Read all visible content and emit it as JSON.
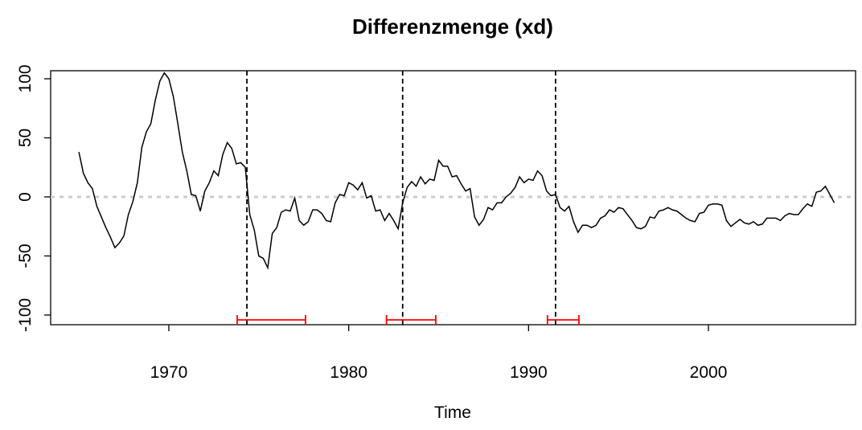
{
  "chart_data": {
    "type": "line",
    "title": "Differenzmenge (xd)",
    "x_label": "Time",
    "x": [
      1965,
      1965.25,
      1965.5,
      1965.75,
      1966,
      1966.25,
      1966.5,
      1966.75,
      1967,
      1967.25,
      1967.5,
      1967.75,
      1968,
      1968.25,
      1968.5,
      1968.75,
      1969,
      1969.25,
      1969.5,
      1969.75,
      1970,
      1970.25,
      1970.5,
      1970.75,
      1971,
      1971.25,
      1971.5,
      1971.75,
      1972,
      1972.25,
      1972.5,
      1972.75,
      1973,
      1973.25,
      1973.5,
      1973.75,
      1974,
      1974.25,
      1974.5,
      1974.75,
      1975,
      1975.25,
      1975.5,
      1975.75,
      1976,
      1976.25,
      1976.5,
      1976.75,
      1977,
      1977.25,
      1977.5,
      1977.75,
      1978,
      1978.25,
      1978.5,
      1978.75,
      1979,
      1979.25,
      1979.5,
      1979.75,
      1980,
      1980.25,
      1980.5,
      1980.75,
      1981,
      1981.25,
      1981.5,
      1981.75,
      1982,
      1982.25,
      1982.5,
      1982.75,
      1983,
      1983.25,
      1983.5,
      1983.75,
      1984,
      1984.25,
      1984.5,
      1984.75,
      1985,
      1985.25,
      1985.5,
      1985.75,
      1986,
      1986.25,
      1986.5,
      1986.75,
      1987,
      1987.25,
      1987.5,
      1987.75,
      1988,
      1988.25,
      1988.5,
      1988.75,
      1989,
      1989.25,
      1989.5,
      1989.75,
      1990,
      1990.25,
      1990.5,
      1990.75,
      1991,
      1991.25,
      1991.5,
      1991.75,
      1992,
      1992.25,
      1992.5,
      1992.75,
      1993,
      1993.25,
      1993.5,
      1993.75,
      1994,
      1994.25,
      1994.5,
      1994.75,
      1995,
      1995.25,
      1995.5,
      1995.75,
      1996,
      1996.25,
      1996.5,
      1996.75,
      1997,
      1997.25,
      1997.5,
      1997.75,
      1998,
      1998.25,
      1998.5,
      1998.75,
      1999,
      1999.25,
      1999.5,
      1999.75,
      2000,
      2000.25,
      2000.5,
      2000.75,
      2001,
      2001.25,
      2001.5,
      2001.75,
      2002,
      2002.25,
      2002.5,
      2002.75,
      2003,
      2003.25,
      2003.5,
      2003.75,
      2004,
      2004.25,
      2004.5,
      2004.75,
      2005,
      2005.25,
      2005.5,
      2005.75,
      2006,
      2006.25,
      2006.5,
      2006.75,
      2007
    ],
    "values": [
      38,
      20,
      12,
      7,
      -8,
      -17,
      -26,
      -34,
      -43,
      -39,
      -33,
      -15,
      -4,
      12,
      42,
      55,
      62,
      82,
      98,
      105,
      100,
      85,
      62,
      38,
      22,
      2,
      1,
      -12,
      5,
      12,
      22,
      18,
      36,
      46,
      41,
      28,
      29,
      25,
      -15,
      -28,
      -50,
      -52,
      -60,
      -31,
      -26,
      -13,
      -11,
      -12,
      -1,
      -20,
      -24,
      -21,
      -11,
      -11,
      -14,
      -20,
      -21,
      -5,
      2,
      1,
      12,
      10,
      6,
      12,
      -1,
      1,
      -12,
      -11,
      -20,
      -14,
      -20,
      -27,
      -5,
      8,
      13,
      9,
      17,
      11,
      15,
      14,
      31,
      26,
      26,
      17,
      18,
      11,
      5,
      7,
      -17,
      -24,
      -19,
      -9,
      -11,
      -5,
      -5,
      0,
      3,
      8,
      17,
      12,
      15,
      14,
      22,
      18,
      5,
      1,
      2,
      -9,
      -12,
      -8,
      -21,
      -30,
      -24,
      -24,
      -26,
      -24,
      -18,
      -16,
      -11,
      -13,
      -9,
      -10,
      -15,
      -20,
      -26,
      -27,
      -25,
      -17,
      -18,
      -12,
      -11,
      -9,
      -11,
      -12,
      -15,
      -18,
      -20,
      -21,
      -14,
      -13,
      -7,
      -6,
      -6,
      -7,
      -20,
      -25,
      -22,
      -19,
      -22,
      -23,
      -21,
      -24,
      -23,
      -18,
      -18,
      -18,
      -20,
      -16,
      -14,
      -15,
      -15,
      -10,
      -6,
      -8,
      4,
      5,
      9,
      2,
      -5
    ],
    "color": "#000000",
    "reference_line": 0,
    "reference_color": "#cccccc",
    "breakpoints": [
      1974.34,
      1983.0,
      1991.5
    ],
    "breakpoint_color": "#000000",
    "confidence_intervals": [
      [
        1973.8,
        1977.6
      ],
      [
        1982.1,
        1984.84
      ],
      [
        1991.05,
        1992.8
      ]
    ],
    "ci_color": "#ff0000",
    "xlim": [
      1963.43,
      2008.18
    ],
    "ylim": [
      -108.2,
      106.8
    ],
    "xticks": [
      1970,
      1980,
      1990,
      2000
    ],
    "yticks": [
      -100,
      -50,
      0,
      50,
      100
    ],
    "grid": false
  }
}
